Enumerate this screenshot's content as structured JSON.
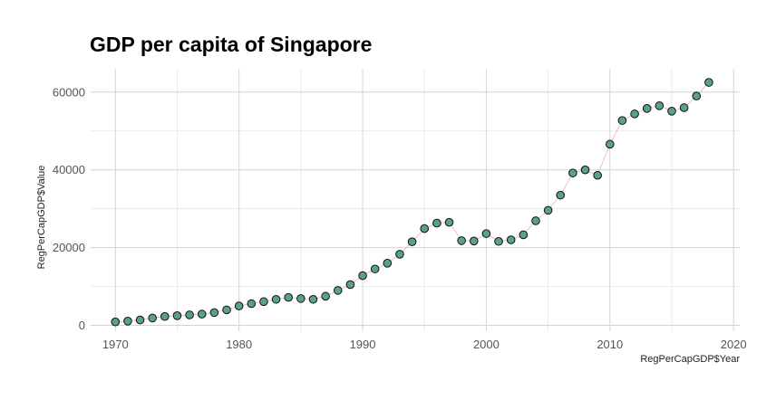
{
  "chart_data": {
    "type": "scatter",
    "title": "GDP per capita of Singapore",
    "xlabel": "RegPerCapGDP$Year",
    "ylabel": "RegPerCapGDP$Value",
    "xlim": [
      1968,
      2020.5
    ],
    "ylim": [
      -1500,
      66000
    ],
    "x_ticks": [
      1970,
      1980,
      1990,
      2000,
      2010,
      2020
    ],
    "y_ticks": [
      0,
      20000,
      40000,
      60000
    ],
    "grid": true,
    "point_fill": "#5aa08a",
    "line_color": "#e8b4b0",
    "series": [
      {
        "x": [
          1970,
          1971,
          1972,
          1973,
          1974,
          1975,
          1976,
          1977,
          1978,
          1979,
          1980,
          1981,
          1982,
          1983,
          1984,
          1985,
          1986,
          1987,
          1988,
          1989,
          1990,
          1991,
          1992,
          1993,
          1994,
          1995,
          1996,
          1997,
          1998,
          1999,
          2000,
          2001,
          2002,
          2003,
          2004,
          2005,
          2006,
          2007,
          2008,
          2009,
          2010,
          2011,
          2012,
          2013,
          2014,
          2015,
          2016,
          2017,
          2018
        ],
        "y": [
          900,
          1100,
          1400,
          1900,
          2300,
          2500,
          2700,
          2900,
          3300,
          4000,
          5000,
          5600,
          6100,
          6700,
          7200,
          6900,
          6700,
          7500,
          9000,
          10500,
          12800,
          14500,
          16000,
          18300,
          21500,
          24900,
          26300,
          26500,
          21800,
          21700,
          23600,
          21600,
          22000,
          23300,
          26900,
          29600,
          33500,
          39200,
          40000,
          38600,
          46600,
          52700,
          54400,
          55800,
          56500,
          55100,
          56000,
          59000,
          62500
        ]
      }
    ]
  }
}
